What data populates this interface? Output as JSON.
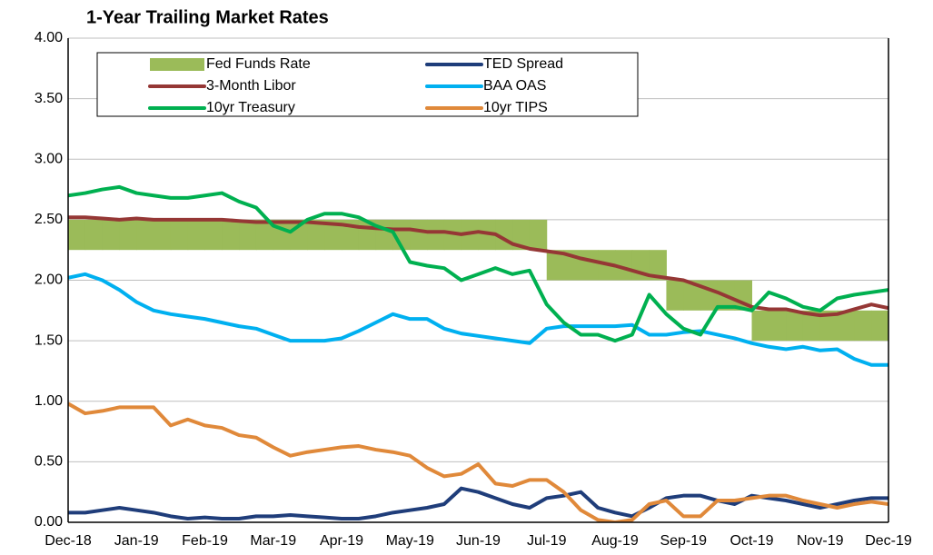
{
  "chart_data": {
    "type": "line",
    "title": "1-Year Trailing Market Rates",
    "categories": [
      "Dec-18",
      null,
      null,
      null,
      "Jan-19",
      null,
      null,
      null,
      "Feb-19",
      null,
      null,
      null,
      "Mar-19",
      null,
      null,
      null,
      "Apr-19",
      null,
      null,
      null,
      "May-19",
      null,
      null,
      null,
      "Jun-19",
      null,
      null,
      null,
      "Jul-19",
      null,
      null,
      null,
      "Aug-19",
      null,
      null,
      null,
      "Sep-19",
      null,
      null,
      null,
      "Oct-19",
      null,
      null,
      null,
      "Nov-19",
      null,
      null,
      null,
      "Dec-19"
    ],
    "ylim": [
      0,
      4
    ],
    "yticks": [
      {
        "value": 0,
        "label": "0.00"
      },
      {
        "value": 0.5,
        "label": "0.50"
      },
      {
        "value": 1,
        "label": "1.00"
      },
      {
        "value": 1.5,
        "label": "1.50"
      },
      {
        "value": 2,
        "label": "2.00"
      },
      {
        "value": 2.5,
        "label": "2.50"
      },
      {
        "value": 3,
        "label": "3.00"
      },
      {
        "value": 3.5,
        "label": "3.50"
      },
      {
        "value": 4,
        "label": "4.00"
      }
    ],
    "grid": true,
    "series": [
      {
        "name": "Fed Funds Rate",
        "color": "#9bbb59",
        "type": "band",
        "low": [
          2.25,
          2.25,
          2.25,
          2.25,
          2.25,
          2.25,
          2.25,
          2.25,
          2.25,
          2.25,
          2.25,
          2.25,
          2.25,
          2.25,
          2.25,
          2.25,
          2.25,
          2.25,
          2.25,
          2.25,
          2.25,
          2.25,
          2.25,
          2.25,
          2.25,
          2.25,
          2.25,
          2.25,
          2.0,
          2.0,
          2.0,
          2.0,
          2.0,
          2.0,
          2.0,
          1.75,
          1.75,
          1.75,
          1.75,
          1.75,
          1.5,
          1.5,
          1.5,
          1.5,
          1.5,
          1.5,
          1.5,
          1.5,
          1.5
        ],
        "high": [
          2.5,
          2.5,
          2.5,
          2.5,
          2.5,
          2.5,
          2.5,
          2.5,
          2.5,
          2.5,
          2.5,
          2.5,
          2.5,
          2.5,
          2.5,
          2.5,
          2.5,
          2.5,
          2.5,
          2.5,
          2.5,
          2.5,
          2.5,
          2.5,
          2.5,
          2.5,
          2.5,
          2.5,
          2.25,
          2.25,
          2.25,
          2.25,
          2.25,
          2.25,
          2.25,
          2.0,
          2.0,
          2.0,
          2.0,
          2.0,
          1.75,
          1.75,
          1.75,
          1.75,
          1.75,
          1.75,
          1.75,
          1.75,
          1.75
        ]
      },
      {
        "name": "TED Spread",
        "color": "#1f3d7a",
        "values": [
          0.08,
          0.08,
          0.1,
          0.12,
          0.1,
          0.08,
          0.05,
          0.03,
          0.04,
          0.03,
          0.03,
          0.05,
          0.05,
          0.06,
          0.05,
          0.04,
          0.03,
          0.03,
          0.05,
          0.08,
          0.1,
          0.12,
          0.15,
          0.28,
          0.25,
          0.2,
          0.15,
          0.12,
          0.2,
          0.22,
          0.25,
          0.12,
          0.08,
          0.05,
          0.12,
          0.2,
          0.22,
          0.22,
          0.18,
          0.15,
          0.22,
          0.2,
          0.18,
          0.15,
          0.12,
          0.15,
          0.18,
          0.2,
          0.2
        ]
      },
      {
        "name": "3-Month Libor",
        "color": "#953735",
        "values": [
          2.52,
          2.52,
          2.51,
          2.5,
          2.51,
          2.5,
          2.5,
          2.5,
          2.5,
          2.5,
          2.49,
          2.48,
          2.48,
          2.48,
          2.48,
          2.47,
          2.46,
          2.44,
          2.43,
          2.42,
          2.42,
          2.4,
          2.4,
          2.38,
          2.4,
          2.38,
          2.3,
          2.26,
          2.24,
          2.22,
          2.18,
          2.15,
          2.12,
          2.08,
          2.04,
          2.02,
          2.0,
          1.95,
          1.9,
          1.84,
          1.78,
          1.76,
          1.76,
          1.73,
          1.71,
          1.72,
          1.76,
          1.8,
          1.77
        ]
      },
      {
        "name": "BAA OAS",
        "color": "#00b0f0",
        "values": [
          2.02,
          2.05,
          2.0,
          1.92,
          1.82,
          1.75,
          1.72,
          1.7,
          1.68,
          1.65,
          1.62,
          1.6,
          1.55,
          1.5,
          1.5,
          1.5,
          1.52,
          1.58,
          1.65,
          1.72,
          1.68,
          1.68,
          1.6,
          1.56,
          1.54,
          1.52,
          1.5,
          1.48,
          1.6,
          1.62,
          1.62,
          1.62,
          1.62,
          1.63,
          1.55,
          1.55,
          1.57,
          1.58,
          1.55,
          1.52,
          1.48,
          1.45,
          1.43,
          1.45,
          1.42,
          1.43,
          1.35,
          1.3,
          1.3
        ]
      },
      {
        "name": "10yr Treasury",
        "color": "#00b050",
        "values": [
          2.7,
          2.72,
          2.75,
          2.77,
          2.72,
          2.7,
          2.68,
          2.68,
          2.7,
          2.72,
          2.65,
          2.6,
          2.45,
          2.4,
          2.5,
          2.55,
          2.55,
          2.52,
          2.45,
          2.4,
          2.15,
          2.12,
          2.1,
          2.0,
          2.05,
          2.1,
          2.05,
          2.08,
          1.8,
          1.65,
          1.55,
          1.55,
          1.5,
          1.55,
          1.88,
          1.72,
          1.6,
          1.55,
          1.78,
          1.78,
          1.75,
          1.9,
          1.85,
          1.78,
          1.75,
          1.85,
          1.88,
          1.9,
          1.92
        ]
      },
      {
        "name": "10yr TIPS",
        "color": "#e0893a",
        "values": [
          0.98,
          0.9,
          0.92,
          0.95,
          0.95,
          0.95,
          0.8,
          0.85,
          0.8,
          0.78,
          0.72,
          0.7,
          0.62,
          0.55,
          0.58,
          0.6,
          0.62,
          0.63,
          0.6,
          0.58,
          0.55,
          0.45,
          0.38,
          0.4,
          0.48,
          0.32,
          0.3,
          0.35,
          0.35,
          0.25,
          0.1,
          0.02,
          0.0,
          0.02,
          0.15,
          0.18,
          0.05,
          0.05,
          0.18,
          0.18,
          0.2,
          0.22,
          0.22,
          0.18,
          0.15,
          0.12,
          0.15,
          0.17,
          0.15
        ]
      }
    ]
  }
}
